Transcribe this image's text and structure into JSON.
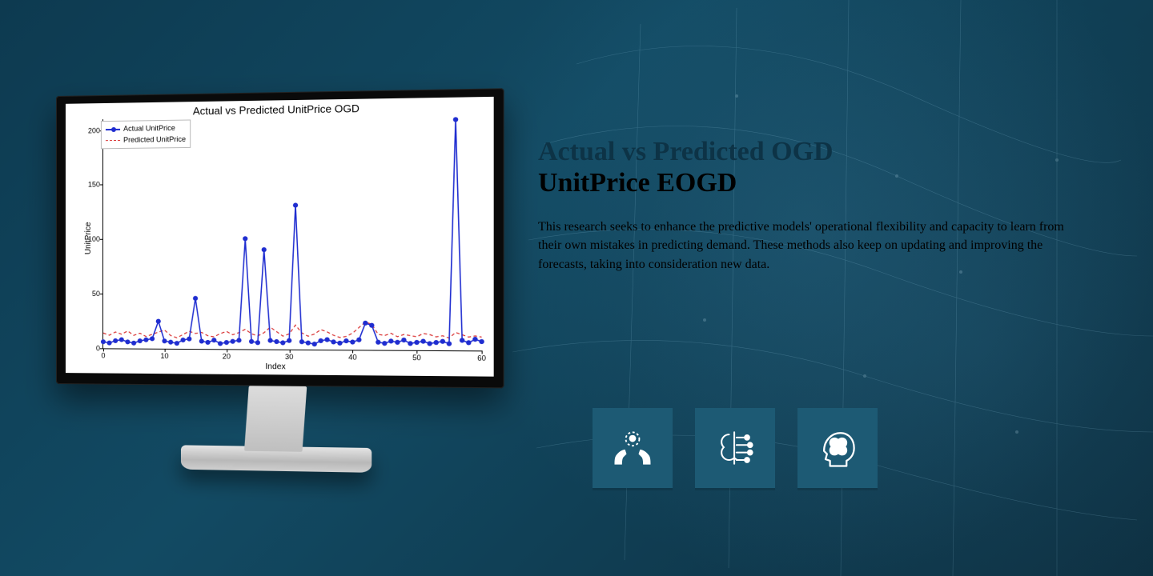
{
  "page": {
    "background_colors": [
      "#0d3a50",
      "#124a63",
      "#0d2e3f"
    ]
  },
  "text": {
    "heading_line1": "Actual vs Predicted OGD",
    "heading_line2": "UnitPrice EOGD",
    "heading_line1_color": "#0d3346",
    "heading_line2_color": "#000000",
    "heading_fontsize": 34,
    "paragraph": "This research seeks to enhance the predictive models' operational flexibility and capacity to learn from their own mistakes in predicting demand. These methods also keep on updating and improving the forecasts, taking into consideration new data.",
    "paragraph_color": "#000000",
    "paragraph_fontsize": 16
  },
  "chart": {
    "type": "line",
    "title": "Actual vs Predicted UnitPrice OGD",
    "title_fontsize": 13,
    "xlabel": "Index",
    "ylabel": "UnitPrice",
    "label_fontsize": 10,
    "xlim": [
      0,
      60
    ],
    "ylim": [
      0,
      210
    ],
    "xtick_step": 10,
    "xticks": [
      0,
      10,
      20,
      30,
      40,
      50,
      60
    ],
    "yticks": [
      0,
      50,
      100,
      150,
      200
    ],
    "background_color": "#ffffff",
    "axis_color": "#000000",
    "tick_fontsize": 9,
    "legend": {
      "position": "upper-left",
      "items": [
        {
          "label": "Actual UnitPrice",
          "color": "#1f2dd0",
          "style": "solid",
          "marker": "circle"
        },
        {
          "label": "Predicted UnitPrice",
          "color": "#d93434",
          "style": "dashed",
          "marker": "none"
        }
      ],
      "fontsize": 9,
      "border_color": "#bbbbbb"
    },
    "series": {
      "actual": {
        "color": "#1f2dd0",
        "line_width": 1.5,
        "marker": "circle",
        "marker_size": 3,
        "x": [
          0,
          1,
          2,
          3,
          4,
          5,
          6,
          7,
          8,
          9,
          10,
          11,
          12,
          13,
          14,
          15,
          16,
          17,
          18,
          19,
          20,
          21,
          22,
          23,
          24,
          25,
          26,
          27,
          28,
          29,
          30,
          31,
          32,
          33,
          34,
          35,
          36,
          37,
          38,
          39,
          40,
          41,
          42,
          43,
          44,
          45,
          46,
          47,
          48,
          49,
          50,
          51,
          52,
          53,
          54,
          55,
          56,
          57,
          58,
          59,
          60
        ],
        "y": [
          6,
          5,
          7,
          8,
          6,
          5,
          7,
          8,
          9,
          25,
          7,
          6,
          5,
          8,
          9,
          46,
          7,
          6,
          8,
          5,
          6,
          7,
          8,
          100,
          7,
          6,
          90,
          8,
          7,
          6,
          8,
          130,
          7,
          6,
          5,
          8,
          9,
          7,
          6,
          8,
          7,
          9,
          24,
          22,
          7,
          6,
          8,
          7,
          9,
          6,
          7,
          8,
          6,
          7,
          8,
          6,
          205,
          9,
          7,
          10,
          8
        ]
      },
      "predicted": {
        "color": "#d93434",
        "line_width": 1.2,
        "style": "dashed",
        "x": [
          0,
          1,
          2,
          3,
          4,
          5,
          6,
          7,
          8,
          9,
          10,
          11,
          12,
          13,
          14,
          15,
          16,
          17,
          18,
          19,
          20,
          21,
          22,
          23,
          24,
          25,
          26,
          27,
          28,
          29,
          30,
          31,
          32,
          33,
          34,
          35,
          36,
          37,
          38,
          39,
          40,
          41,
          42,
          43,
          44,
          45,
          46,
          47,
          48,
          49,
          50,
          51,
          52,
          53,
          54,
          55,
          56,
          57,
          58,
          59,
          60
        ],
        "y": [
          14,
          12,
          15,
          13,
          16,
          12,
          14,
          11,
          13,
          15,
          17,
          12,
          10,
          13,
          16,
          14,
          15,
          12,
          11,
          14,
          16,
          13,
          15,
          18,
          14,
          12,
          15,
          20,
          16,
          12,
          14,
          22,
          15,
          12,
          14,
          18,
          16,
          13,
          11,
          12,
          15,
          20,
          25,
          23,
          14,
          13,
          15,
          12,
          14,
          13,
          12,
          15,
          14,
          12,
          13,
          11,
          16,
          14,
          12,
          13,
          12
        ]
      }
    }
  },
  "icons": {
    "card_background": "#1d5a74",
    "icon_color": "#ffffff",
    "items": [
      {
        "name": "hands-brain-icon"
      },
      {
        "name": "neural-chip-icon"
      },
      {
        "name": "head-brain-icon"
      }
    ]
  }
}
